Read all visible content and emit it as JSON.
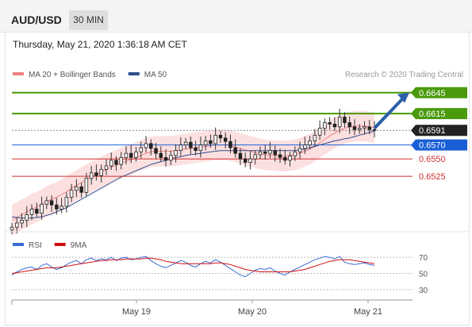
{
  "header": {
    "symbol": "AUD/USD",
    "timeframe": "30 MIN",
    "timestamp": "Thursday, May 21, 2020 1:36:18 AM CET"
  },
  "chart_data": [
    {
      "type": "candlestick",
      "legend": [
        {
          "name": "MA 20 + Bollinger Bands",
          "color": "#f08080"
        },
        {
          "name": "MA 50",
          "color": "#2c4e8c"
        }
      ],
      "credit": "Research © 2020 Trading Central",
      "ylim": [
        0.645,
        0.6655
      ],
      "levels": [
        {
          "value": 0.6645,
          "label": "0.6645",
          "color": "#4a9a0c",
          "style": "target"
        },
        {
          "value": 0.6615,
          "label": "0.6615",
          "color": "#4a9a0c",
          "style": "resistance"
        },
        {
          "value": 0.6591,
          "label": "0.6591",
          "color": "#222222",
          "style": "last"
        },
        {
          "value": 0.657,
          "label": "0.6570",
          "color": "#1b5fd6",
          "style": "pivot"
        },
        {
          "value": 0.655,
          "label": "0.6550",
          "color": "#d03030",
          "style": "support"
        },
        {
          "value": 0.6525,
          "label": "0.6525",
          "color": "#d03030",
          "style": "support"
        }
      ],
      "close": [
        0.6452,
        0.6458,
        0.6462,
        0.647,
        0.6478,
        0.6472,
        0.6485,
        0.649,
        0.6484,
        0.6478,
        0.6482,
        0.6495,
        0.6505,
        0.651,
        0.6502,
        0.6522,
        0.653,
        0.6526,
        0.6535,
        0.654,
        0.6548,
        0.6542,
        0.6552,
        0.6558,
        0.6552,
        0.656,
        0.6566,
        0.6572,
        0.6565,
        0.6558,
        0.6552,
        0.6548,
        0.6555,
        0.6562,
        0.657,
        0.6574,
        0.6566,
        0.6562,
        0.657,
        0.6576,
        0.6572,
        0.6584,
        0.658,
        0.6575,
        0.6566,
        0.6558,
        0.655,
        0.6545,
        0.655,
        0.6556,
        0.656,
        0.6558,
        0.6562,
        0.6556,
        0.6552,
        0.6548,
        0.6554,
        0.656,
        0.6565,
        0.657,
        0.6576,
        0.6584,
        0.6594,
        0.6602,
        0.66,
        0.6596,
        0.661,
        0.6602,
        0.6596,
        0.6592,
        0.6594,
        0.6596,
        0.6592,
        0.6591
      ],
      "ma20": [
        0.6462,
        0.6466,
        0.647,
        0.6474,
        0.6478,
        0.6481,
        0.6485,
        0.6489,
        0.6492,
        0.6495,
        0.6499,
        0.6503,
        0.6508,
        0.6512,
        0.6516,
        0.652,
        0.6524,
        0.6528,
        0.6531,
        0.6535,
        0.6538,
        0.6541,
        0.6544,
        0.6547,
        0.6549,
        0.6552,
        0.6555,
        0.6558,
        0.656,
        0.6561,
        0.6561,
        0.6561,
        0.6561,
        0.6562,
        0.6563,
        0.6564,
        0.6565,
        0.6566,
        0.6567,
        0.6568,
        0.6569,
        0.657,
        0.657,
        0.657,
        0.6569,
        0.6567,
        0.6565,
        0.6563,
        0.6561,
        0.6559,
        0.6557,
        0.6556,
        0.6555,
        0.6555,
        0.6554,
        0.6554,
        0.6555,
        0.6556,
        0.6558,
        0.6561,
        0.6564,
        0.6568,
        0.6573,
        0.6578,
        0.6583,
        0.6587,
        0.6591,
        0.6594,
        0.6596,
        0.6597,
        0.6597,
        0.6597,
        0.6596,
        0.6595
      ],
      "bb_width": 0.0022,
      "ma50": [
        0.6467,
        0.6466,
        0.6465,
        0.6465,
        0.6465,
        0.6466,
        0.6467,
        0.6469,
        0.6471,
        0.6474,
        0.6477,
        0.648,
        0.6484,
        0.6488,
        0.6492,
        0.6496,
        0.65,
        0.6504,
        0.6508,
        0.6512,
        0.6516,
        0.652,
        0.6524,
        0.6527,
        0.653,
        0.6533,
        0.6536,
        0.6539,
        0.6542,
        0.6544,
        0.6546,
        0.6548,
        0.655,
        0.6552,
        0.6553,
        0.6555,
        0.6556,
        0.6557,
        0.6558,
        0.6559,
        0.656,
        0.6561,
        0.6562,
        0.6562,
        0.6562,
        0.6562,
        0.6562,
        0.6562,
        0.6562,
        0.6562,
        0.6562,
        0.6562,
        0.6562,
        0.6562,
        0.6562,
        0.6562,
        0.6562,
        0.6562,
        0.6563,
        0.6564,
        0.6566,
        0.6568,
        0.657,
        0.6572,
        0.6574,
        0.6576,
        0.6577,
        0.6579,
        0.658,
        0.6582,
        0.6584,
        0.6586,
        0.6588,
        0.659
      ],
      "arrow": {
        "from": 0.6594,
        "to": 0.6645
      }
    },
    {
      "type": "line",
      "legend": [
        {
          "name": "RSI",
          "color": "#3a6bd6"
        },
        {
          "name": "9MA",
          "color": "#d01010"
        }
      ],
      "ylim": [
        25,
        80
      ],
      "ticks": [
        "70",
        "50",
        "30"
      ],
      "tick_values": [
        70,
        50,
        30
      ],
      "rsi": [
        48,
        52,
        55,
        57,
        58,
        55,
        60,
        62,
        58,
        55,
        57,
        61,
        64,
        66,
        62,
        67,
        69,
        66,
        68,
        67,
        70,
        66,
        69,
        70,
        67,
        68,
        70,
        71,
        66,
        62,
        59,
        57,
        60,
        63,
        66,
        64,
        60,
        58,
        62,
        65,
        63,
        67,
        64,
        60,
        56,
        52,
        48,
        46,
        50,
        54,
        56,
        55,
        57,
        53,
        50,
        48,
        52,
        55,
        58,
        61,
        64,
        67,
        69,
        71,
        70,
        68,
        71,
        64,
        62,
        61,
        62,
        63,
        61,
        60
      ],
      "ma9": [
        50,
        51,
        52,
        53,
        54,
        55,
        56,
        57,
        57,
        57,
        58,
        59,
        60,
        61,
        62,
        63,
        64,
        65,
        66,
        66,
        67,
        67,
        67,
        68,
        68,
        68,
        68,
        69,
        69,
        68,
        67,
        65,
        64,
        63,
        62,
        62,
        62,
        62,
        62,
        62,
        62,
        63,
        63,
        62,
        61,
        59,
        57,
        55,
        54,
        53,
        52,
        52,
        52,
        52,
        52,
        52,
        52,
        53,
        54,
        55,
        57,
        59,
        61,
        63,
        65,
        66,
        67,
        67,
        67,
        66,
        65,
        64,
        63,
        62
      ],
      "x_labels": [
        "May 19",
        "May 20",
        "May 21"
      ]
    }
  ]
}
